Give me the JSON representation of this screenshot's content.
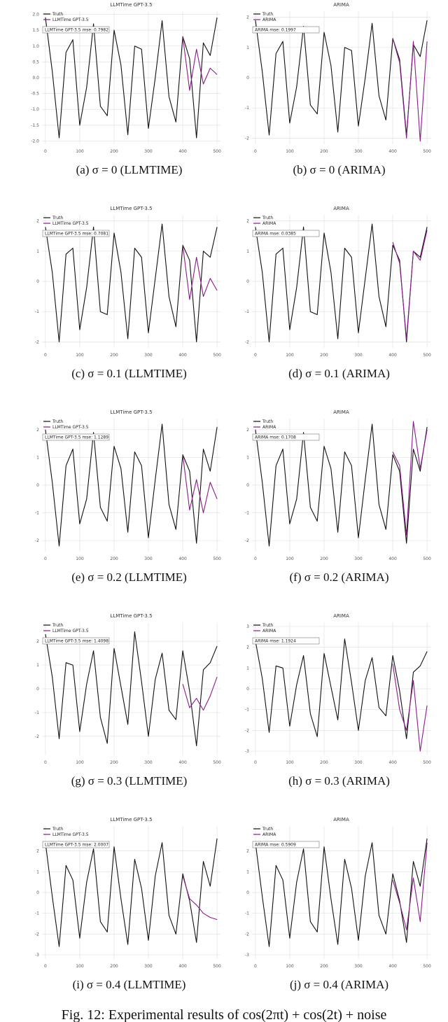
{
  "chart_data": [
    {
      "type": "line",
      "title": "LLMTime GPT-3.5",
      "annotation": "LLMTime GPT-3.5 mse: 0.7982",
      "caption": "(a) σ = 0 (LLMTIME)",
      "grid": true,
      "legend": "upper left",
      "xlim": [
        -10,
        510
      ],
      "xticks": [
        0,
        100,
        200,
        300,
        400,
        500
      ],
      "ylim": [
        -2.1,
        2.1
      ],
      "yticks": [
        {
          "value": -2,
          "label": "-2.0"
        },
        {
          "value": -1.5,
          "label": "-1.5"
        },
        {
          "value": -1,
          "label": "-1.0"
        },
        -0.5,
        {
          "value": 0,
          "label": "0.0"
        },
        0.5,
        {
          "value": 1,
          "label": "1.0"
        },
        1.5,
        {
          "value": 2,
          "label": "2.0"
        }
      ],
      "series": [
        {
          "name": "Truth",
          "color": "#111111",
          "x": [
            0,
            20,
            40,
            60,
            80,
            100,
            120,
            140,
            160,
            180,
            200,
            220,
            240,
            260,
            280,
            300,
            320,
            340,
            360,
            380,
            400,
            420,
            440,
            460,
            480,
            500
          ],
          "values": [
            1.9,
            0.2,
            -1.9,
            0.8,
            1.2,
            -1.5,
            -0.3,
            1.7,
            -0.9,
            -1.2,
            1.5,
            0.4,
            -1.8,
            1.0,
            0.9,
            -1.6,
            0.0,
            1.8,
            -0.6,
            -1.4,
            1.3,
            0.6,
            -1.9,
            1.1,
            0.7,
            1.9
          ]
        },
        {
          "name": "LLMTime GPT-3.5",
          "color": "#8b1a8b",
          "x": [
            400,
            420,
            440,
            460,
            480,
            500
          ],
          "values": [
            1.3,
            -0.4,
            0.9,
            -0.2,
            0.3,
            0.1
          ]
        }
      ]
    },
    {
      "type": "line",
      "title": "ARIMA",
      "annotation": "ARIMA mse: 0.1997",
      "caption": "(b) σ = 0 (ARIMA)",
      "grid": true,
      "legend": "upper left",
      "xlim": [
        -10,
        510
      ],
      "xticks": [
        0,
        100,
        200,
        300,
        400,
        500
      ],
      "ylim": [
        -2.2,
        2.2
      ],
      "yticks": [
        -2,
        -1,
        0,
        1,
        2
      ],
      "series": [
        {
          "name": "Truth",
          "color": "#111111",
          "x": [
            0,
            20,
            40,
            60,
            80,
            100,
            120,
            140,
            160,
            180,
            200,
            220,
            240,
            260,
            280,
            300,
            320,
            340,
            360,
            380,
            400,
            420,
            440,
            460,
            480,
            500
          ],
          "values": [
            1.9,
            0.2,
            -1.9,
            0.8,
            1.2,
            -1.5,
            -0.3,
            1.7,
            -0.9,
            -1.2,
            1.5,
            0.4,
            -1.8,
            1.0,
            0.9,
            -1.6,
            0.0,
            1.8,
            -0.6,
            -1.4,
            1.3,
            0.6,
            -1.9,
            1.1,
            0.7,
            1.9
          ]
        },
        {
          "name": "ARIMA",
          "color": "#8b1a8b",
          "x": [
            400,
            420,
            440,
            460,
            480,
            500
          ],
          "values": [
            1.3,
            0.5,
            -2.0,
            1.2,
            -2.1,
            1.2
          ]
        }
      ]
    },
    {
      "type": "line",
      "title": "LLMTime GPT-3.5",
      "annotation": "LLMTime GPT-3.5 mse: 0.7081",
      "caption": "(c) σ = 0.1 (LLMTIME)",
      "grid": true,
      "legend": "upper left",
      "xlim": [
        -10,
        510
      ],
      "xticks": [
        0,
        100,
        200,
        300,
        400,
        500
      ],
      "ylim": [
        -2.2,
        2.2
      ],
      "yticks": [
        -2,
        -1,
        0,
        1,
        2
      ],
      "series": [
        {
          "name": "Truth",
          "color": "#111111",
          "x": [
            0,
            20,
            40,
            60,
            80,
            100,
            120,
            140,
            160,
            180,
            200,
            220,
            240,
            260,
            280,
            300,
            320,
            340,
            360,
            380,
            400,
            420,
            440,
            460,
            480,
            500
          ],
          "values": [
            1.8,
            0.3,
            -2.0,
            0.9,
            1.1,
            -1.6,
            -0.2,
            1.8,
            -1.0,
            -1.1,
            1.6,
            0.3,
            -1.9,
            1.1,
            0.8,
            -1.7,
            0.1,
            1.9,
            -0.5,
            -1.5,
            1.2,
            0.7,
            -2.0,
            1.0,
            0.8,
            1.8
          ]
        },
        {
          "name": "LLMTime GPT-3.5",
          "color": "#8b1a8b",
          "x": [
            400,
            420,
            440,
            460,
            480,
            500
          ],
          "values": [
            1.2,
            -0.6,
            0.8,
            -0.5,
            0.1,
            -0.3
          ]
        }
      ]
    },
    {
      "type": "line",
      "title": "ARIMA",
      "annotation": "ARIMA mse: 0.0385",
      "caption": "(d) σ = 0.1 (ARIMA)",
      "grid": true,
      "legend": "upper left",
      "xlim": [
        -10,
        510
      ],
      "xticks": [
        0,
        100,
        200,
        300,
        400,
        500
      ],
      "ylim": [
        -2.2,
        2.2
      ],
      "yticks": [
        -2,
        -1,
        0,
        1,
        2
      ],
      "series": [
        {
          "name": "Truth",
          "color": "#111111",
          "x": [
            0,
            20,
            40,
            60,
            80,
            100,
            120,
            140,
            160,
            180,
            200,
            220,
            240,
            260,
            280,
            300,
            320,
            340,
            360,
            380,
            400,
            420,
            440,
            460,
            480,
            500
          ],
          "values": [
            1.8,
            0.3,
            -2.0,
            0.9,
            1.1,
            -1.6,
            -0.2,
            1.8,
            -1.0,
            -1.1,
            1.6,
            0.3,
            -1.9,
            1.1,
            0.8,
            -1.7,
            0.1,
            1.9,
            -0.5,
            -1.5,
            1.2,
            0.7,
            -2.0,
            1.0,
            0.8,
            1.8
          ]
        },
        {
          "name": "ARIMA",
          "color": "#8b1a8b",
          "x": [
            400,
            420,
            440,
            460,
            480,
            500
          ],
          "values": [
            1.3,
            0.6,
            -1.9,
            1.0,
            0.7,
            1.7
          ]
        }
      ]
    },
    {
      "type": "line",
      "title": "LLMTime GPT-3.5",
      "annotation": "LLMTime GPT-3.5 mse: 1.1289",
      "caption": "(e) σ = 0.2 (LLMTIME)",
      "grid": true,
      "legend": "upper left",
      "xlim": [
        -10,
        510
      ],
      "xticks": [
        0,
        100,
        200,
        300,
        400,
        500
      ],
      "ylim": [
        -2.4,
        2.4
      ],
      "yticks": [
        -2,
        -1,
        0,
        1,
        2
      ],
      "series": [
        {
          "name": "Truth",
          "color": "#111111",
          "x": [
            0,
            20,
            40,
            60,
            80,
            100,
            120,
            140,
            160,
            180,
            200,
            220,
            240,
            260,
            280,
            300,
            320,
            340,
            360,
            380,
            400,
            420,
            440,
            460,
            480,
            500
          ],
          "values": [
            2.0,
            0.1,
            -2.2,
            0.7,
            1.3,
            -1.4,
            -0.5,
            1.9,
            -0.8,
            -1.3,
            1.4,
            0.6,
            -1.7,
            1.2,
            0.7,
            -1.9,
            0.2,
            2.2,
            -0.7,
            -1.6,
            1.1,
            0.5,
            -2.1,
            1.3,
            0.5,
            2.1
          ]
        },
        {
          "name": "LLMTime GPT-3.5",
          "color": "#8b1a8b",
          "x": [
            400,
            420,
            440,
            460,
            480,
            500
          ],
          "values": [
            1.1,
            -0.9,
            0.2,
            -1.0,
            0.1,
            -0.5
          ]
        }
      ]
    },
    {
      "type": "line",
      "title": "ARIMA",
      "annotation": "ARIMA mse: 0.1708",
      "caption": "(f) σ = 0.2 (ARIMA)",
      "grid": true,
      "legend": "upper left",
      "xlim": [
        -10,
        510
      ],
      "xticks": [
        0,
        100,
        200,
        300,
        400,
        500
      ],
      "ylim": [
        -2.4,
        2.4
      ],
      "yticks": [
        -2,
        -1,
        0,
        1,
        2
      ],
      "series": [
        {
          "name": "Truth",
          "color": "#111111",
          "x": [
            0,
            20,
            40,
            60,
            80,
            100,
            120,
            140,
            160,
            180,
            200,
            220,
            240,
            260,
            280,
            300,
            320,
            340,
            360,
            380,
            400,
            420,
            440,
            460,
            480,
            500
          ],
          "values": [
            2.0,
            0.1,
            -2.2,
            0.7,
            1.3,
            -1.4,
            -0.5,
            1.9,
            -0.8,
            -1.3,
            1.4,
            0.6,
            -1.7,
            1.2,
            0.7,
            -1.9,
            0.2,
            2.2,
            -0.7,
            -1.6,
            1.1,
            0.5,
            -2.1,
            1.3,
            0.5,
            2.1
          ]
        },
        {
          "name": "ARIMA",
          "color": "#8b1a8b",
          "x": [
            400,
            420,
            440,
            460,
            480,
            500
          ],
          "values": [
            1.2,
            0.7,
            -1.8,
            2.3,
            0.6,
            2.0
          ]
        }
      ]
    },
    {
      "type": "line",
      "title": "LLMTime GPT-3.5",
      "annotation": "LLMTime GPT-3.5 mse: 1.4098",
      "caption": "(g) σ = 0.3 (LLMTIME)",
      "grid": true,
      "legend": "upper left",
      "xlim": [
        -10,
        510
      ],
      "xticks": [
        0,
        100,
        200,
        300,
        400,
        500
      ],
      "ylim": [
        -2.8,
        2.8
      ],
      "yticks": [
        -2,
        -1,
        0,
        1,
        2
      ],
      "series": [
        {
          "name": "Truth",
          "color": "#111111",
          "x": [
            0,
            20,
            40,
            60,
            80,
            100,
            120,
            140,
            160,
            180,
            200,
            220,
            240,
            260,
            280,
            300,
            320,
            340,
            360,
            380,
            400,
            420,
            440,
            460,
            480,
            500
          ],
          "values": [
            2.3,
            0.5,
            -2.1,
            1.1,
            1.0,
            -1.8,
            0.2,
            1.6,
            -1.2,
            -2.3,
            1.7,
            0.1,
            -1.5,
            2.4,
            0.3,
            -2.0,
            0.4,
            1.5,
            -0.9,
            -1.3,
            1.6,
            -0.1,
            -2.4,
            0.8,
            1.1,
            1.8
          ]
        },
        {
          "name": "LLMTime GPT-3.5",
          "color": "#8b1a8b",
          "x": [
            400,
            420,
            440,
            460,
            480,
            500
          ],
          "values": [
            0.2,
            -0.8,
            -0.4,
            -0.9,
            -0.3,
            0.5
          ]
        }
      ]
    },
    {
      "type": "line",
      "title": "ARIMA",
      "annotation": "ARIMA mse: 1.1924",
      "caption": "(h) σ = 0.3 (ARIMA)",
      "grid": true,
      "legend": "upper left",
      "xlim": [
        -10,
        510
      ],
      "xticks": [
        0,
        100,
        200,
        300,
        400,
        500
      ],
      "ylim": [
        -3.2,
        3.2
      ],
      "yticks": [
        -3,
        -2,
        -1,
        0,
        1,
        2,
        3
      ],
      "series": [
        {
          "name": "Truth",
          "color": "#111111",
          "x": [
            0,
            20,
            40,
            60,
            80,
            100,
            120,
            140,
            160,
            180,
            200,
            220,
            240,
            260,
            280,
            300,
            320,
            340,
            360,
            380,
            400,
            420,
            440,
            460,
            480,
            500
          ],
          "values": [
            2.3,
            0.5,
            -2.1,
            1.1,
            1.0,
            -1.8,
            0.2,
            1.6,
            -1.2,
            -2.3,
            1.7,
            0.1,
            -1.5,
            2.4,
            0.3,
            -2.0,
            0.4,
            1.5,
            -0.9,
            -1.3,
            1.6,
            -0.1,
            -2.4,
            0.8,
            1.1,
            1.8
          ]
        },
        {
          "name": "ARIMA",
          "color": "#8b1a8b",
          "x": [
            400,
            420,
            440,
            460,
            480,
            500
          ],
          "values": [
            1.2,
            -1.0,
            -2.0,
            0.4,
            -3.0,
            -0.8
          ]
        }
      ]
    },
    {
      "type": "line",
      "title": "LLMTime GPT-3.5",
      "annotation": "LLMTime GPT-3.5 mse: 2.0007",
      "caption": "(i) σ = 0.4 (LLMTIME)",
      "grid": true,
      "legend": "upper left",
      "xlim": [
        -10,
        510
      ],
      "xticks": [
        0,
        100,
        200,
        300,
        400,
        500
      ],
      "ylim": [
        -3.2,
        3.2
      ],
      "yticks": [
        -3,
        -2,
        -1,
        0,
        1,
        2
      ],
      "series": [
        {
          "name": "Truth",
          "color": "#111111",
          "x": [
            0,
            20,
            40,
            60,
            80,
            100,
            120,
            140,
            160,
            180,
            200,
            220,
            240,
            260,
            280,
            300,
            320,
            340,
            360,
            380,
            400,
            420,
            440,
            460,
            480,
            500
          ],
          "values": [
            2.4,
            -0.2,
            -2.6,
            1.3,
            0.6,
            -2.2,
            0.5,
            2.1,
            -1.4,
            -1.9,
            2.2,
            -0.3,
            -2.5,
            1.6,
            0.2,
            -2.3,
            0.8,
            2.4,
            -1.1,
            -2.0,
            0.9,
            -0.4,
            -2.4,
            1.5,
            0.3,
            2.6
          ]
        },
        {
          "name": "LLMTime GPT-3.5",
          "color": "#8b1a8b",
          "x": [
            400,
            420,
            440,
            460,
            480,
            500
          ],
          "values": [
            0.8,
            -0.3,
            -0.6,
            -1.0,
            -1.2,
            -1.3
          ]
        }
      ]
    },
    {
      "type": "line",
      "title": "ARIMA",
      "annotation": "ARIMA mse: 0.5909",
      "caption": "(j) σ = 0.4 (ARIMA)",
      "grid": true,
      "legend": "upper left",
      "xlim": [
        -10,
        510
      ],
      "xticks": [
        0,
        100,
        200,
        300,
        400,
        500
      ],
      "ylim": [
        -3.2,
        3.2
      ],
      "yticks": [
        -3,
        -2,
        -1,
        0,
        1,
        2
      ],
      "series": [
        {
          "name": "Truth",
          "color": "#111111",
          "x": [
            0,
            20,
            40,
            60,
            80,
            100,
            120,
            140,
            160,
            180,
            200,
            220,
            240,
            260,
            280,
            300,
            320,
            340,
            360,
            380,
            400,
            420,
            440,
            460,
            480,
            500
          ],
          "values": [
            2.4,
            -0.2,
            -2.6,
            1.3,
            0.6,
            -2.2,
            0.5,
            2.1,
            -1.4,
            -1.9,
            2.2,
            -0.3,
            -2.5,
            1.6,
            0.2,
            -2.3,
            0.8,
            2.4,
            -1.1,
            -2.0,
            0.9,
            -0.4,
            -2.4,
            1.5,
            0.3,
            2.6
          ]
        },
        {
          "name": "ARIMA",
          "color": "#8b1a8b",
          "x": [
            400,
            420,
            440,
            460,
            480,
            500
          ],
          "values": [
            0.6,
            -0.5,
            -1.8,
            0.7,
            -1.4,
            2.4
          ]
        }
      ]
    }
  ],
  "figure_caption": "Fig. 12: Experimental results of cos(2πt) + cos(2t) + noise"
}
